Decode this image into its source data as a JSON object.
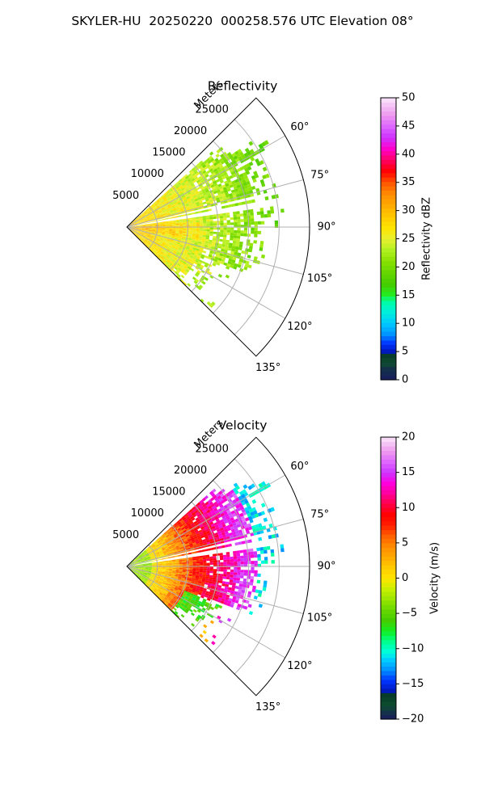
{
  "figure": {
    "title": "SKYLER-HU  20250220  000258.576 UTC Elevation 08°"
  },
  "chart_data": [
    {
      "type": "heatmap",
      "subtype": "polar-sector",
      "title": "Reflectivity",
      "radial_label": "Meters",
      "radial_ticks": [
        "5000",
        "10000",
        "15000",
        "20000",
        "25000"
      ],
      "radial_max": 30000,
      "angle_range_deg": [
        45,
        135
      ],
      "angle_ticks": [
        "60°",
        "75°",
        "90°",
        "105°",
        "120°",
        "135°"
      ],
      "grid": true,
      "colorbar": {
        "label": "Reflectivity dBZ",
        "range": [
          0,
          50
        ],
        "ticks": [
          "0",
          "5",
          "10",
          "15",
          "20",
          "25",
          "30",
          "35",
          "40",
          "45",
          "50"
        ]
      },
      "approximate_field_profile": [
        {
          "range_m": 3000,
          "value": 28
        },
        {
          "range_m": 8000,
          "value": 25
        },
        {
          "range_m": 15000,
          "value": 21
        },
        {
          "range_m": 22000,
          "value": 19
        }
      ]
    },
    {
      "type": "heatmap",
      "subtype": "polar-sector",
      "title": "Velocity",
      "radial_label": "Meters",
      "radial_ticks": [
        "5000",
        "10000",
        "15000",
        "20000",
        "25000"
      ],
      "radial_max": 30000,
      "angle_range_deg": [
        45,
        135
      ],
      "angle_ticks": [
        "60°",
        "75°",
        "90°",
        "105°",
        "120°",
        "135°"
      ],
      "grid": true,
      "colorbar": {
        "label": "Velocity (m/s)",
        "range": [
          -20,
          20
        ],
        "ticks": [
          "−20",
          "−15",
          "−10",
          "−5",
          "0",
          "5",
          "10",
          "15",
          "20"
        ]
      },
      "approximate_field_profile": [
        {
          "range_m": 3000,
          "value": -3
        },
        {
          "range_m": 9000,
          "value": 4
        },
        {
          "range_m": 14000,
          "value": 9
        },
        {
          "range_m": 19000,
          "value": 14
        },
        {
          "range_m": 24000,
          "value": -11
        }
      ]
    }
  ]
}
